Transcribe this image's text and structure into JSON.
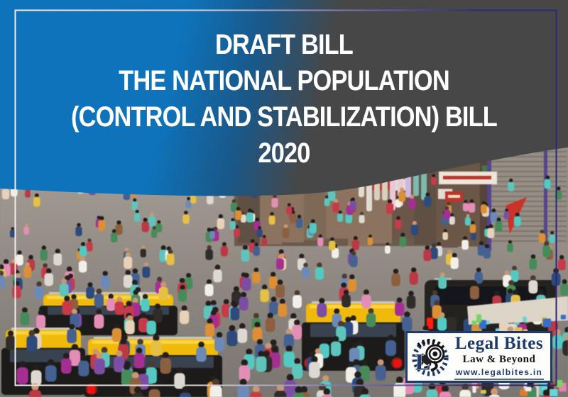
{
  "banner": {
    "lines": [
      "DRAFT BILL",
      "THE NATIONAL POPULATION",
      "(CONTROL AND STABILIZATION) BILL",
      "2020"
    ]
  },
  "logo": {
    "name": "Legal Bites",
    "tagline": "Law & Beyond",
    "website": "www.legalbites.in",
    "monogram": "L"
  },
  "colors": {
    "banner_blue": "#0e73ba",
    "banner_charcoal": "#474747",
    "headline_text": "#ffffff",
    "frame_light": "#f3ecef",
    "frame_navy": "#2c2875",
    "logo_navy": "#1e3a6b",
    "logo_background": "#fdfdfc",
    "taxi_yellow": "#eeb912",
    "taxi_black": "#1c1b19",
    "taillight_red": "#e41414"
  },
  "photo_palette": {
    "street_top": "#a8a29a",
    "street_mid": "#928b84",
    "street_bottom": "#7a7570",
    "shop_tones": [
      "#6a5648",
      "#8a7360",
      "#55433a",
      "#7d6a55",
      "#93765c",
      "#5f4f44"
    ],
    "sign_tones": [
      "#eae4d8",
      "#b5372f",
      "#d9a23b",
      "#3f7d4a",
      "#f2efe9"
    ],
    "hair_dark": "#241f1c",
    "hair_brown": "#4a3a2e",
    "skin": "#c79873",
    "shirts": [
      "#f2efe9",
      "#ddd8d0",
      "#46618f",
      "#2e4a7a",
      "#6e89b5",
      "#2f2c2a",
      "#b63a45",
      "#a0308f",
      "#7b4fa0",
      "#d98f3a",
      "#e3c04b",
      "#4a8a5c",
      "#62c4bc",
      "#e08fb5",
      "#8a5f41",
      "#e6d2b8",
      "#c23b4a",
      "#58c8c0"
    ],
    "goods": [
      "#e87fb0",
      "#6fd3d8",
      "#e3c04b",
      "#c23b35",
      "#3a6fc2",
      "#7bd36a",
      "#f2f0ea",
      "#e07a2e"
    ]
  }
}
